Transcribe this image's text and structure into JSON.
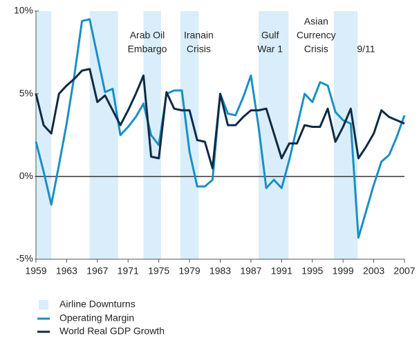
{
  "chart_data": {
    "type": "line",
    "x": [
      1959,
      1960,
      1961,
      1962,
      1963,
      1964,
      1965,
      1966,
      1967,
      1968,
      1969,
      1970,
      1971,
      1972,
      1973,
      1974,
      1975,
      1976,
      1977,
      1978,
      1979,
      1980,
      1981,
      1982,
      1983,
      1984,
      1985,
      1986,
      1987,
      1988,
      1989,
      1990,
      1991,
      1992,
      1993,
      1994,
      1995,
      1996,
      1997,
      1998,
      1999,
      2000,
      2001,
      2002,
      2003,
      2004,
      2005,
      2006,
      2007
    ],
    "series": [
      {
        "name": "Operating Margin",
        "color": "#1a8fc4",
        "values": [
          2.1,
          0.3,
          -1.7,
          0.7,
          3.2,
          6.1,
          9.4,
          9.5,
          7.3,
          5.1,
          5.3,
          2.5,
          3.0,
          3.6,
          4.4,
          2.5,
          1.9,
          5.0,
          5.2,
          5.2,
          1.5,
          -0.6,
          -0.6,
          -0.2,
          5.0,
          3.8,
          3.7,
          4.8,
          6.1,
          3.0,
          -0.7,
          -0.2,
          -0.7,
          1.0,
          3.0,
          5.0,
          4.5,
          5.7,
          5.5,
          3.9,
          3.4,
          3.2,
          -3.7,
          -2.1,
          -0.5,
          0.9,
          1.3,
          2.4,
          3.7
        ]
      },
      {
        "name": "World Real GDP Growth",
        "color": "#0f2a44",
        "values": [
          5.0,
          3.1,
          2.6,
          5.0,
          5.5,
          5.9,
          6.4,
          6.5,
          4.5,
          4.9,
          4.0,
          3.1,
          4.0,
          5.0,
          6.1,
          1.2,
          1.1,
          5.1,
          4.1,
          4.0,
          4.0,
          2.2,
          2.1,
          0.5,
          5.0,
          3.1,
          3.1,
          3.6,
          4.0,
          4.0,
          4.1,
          2.6,
          1.1,
          2.0,
          2.0,
          3.1,
          3.0,
          3.0,
          4.1,
          2.1,
          3.0,
          4.1,
          1.1,
          1.8,
          2.6,
          4.0,
          3.6,
          3.4,
          3.2
        ]
      }
    ],
    "shaded_regions": {
      "name": "Airline Downturns",
      "color": "#d9eefa",
      "ranges": [
        [
          1959,
          1961
        ],
        [
          1966,
          1969.7
        ],
        [
          1973,
          1975.3
        ],
        [
          1977.8,
          1980.2
        ],
        [
          1988,
          1991.9
        ],
        [
          1997.8,
          2000.9
        ]
      ]
    },
    "annotations": [
      {
        "lines": [
          "Arab Oil",
          "Embargo"
        ],
        "x": 1973.5
      },
      {
        "lines": [
          "Iranain",
          "Crisis"
        ],
        "x": 1980.2
      },
      {
        "lines": [
          "Gulf",
          "War 1"
        ],
        "x": 1989.5
      },
      {
        "lines": [
          "Asian",
          "Currency",
          "Crisis"
        ],
        "x": 1995.5
      },
      {
        "lines": [
          "9/11"
        ],
        "x": 2002
      }
    ],
    "xlim": [
      1959,
      2007
    ],
    "xticks": [
      1959,
      1963,
      1967,
      1971,
      1975,
      1979,
      1983,
      1987,
      1991,
      1995,
      1999,
      2003,
      2007
    ],
    "ylim": [
      -5,
      10
    ],
    "yticks": [
      {
        "value": -5,
        "label": "-5%"
      },
      {
        "value": 0,
        "label": "0%"
      },
      {
        "value": 5,
        "label": "5%"
      },
      {
        "value": 10,
        "label": "10%"
      }
    ]
  }
}
